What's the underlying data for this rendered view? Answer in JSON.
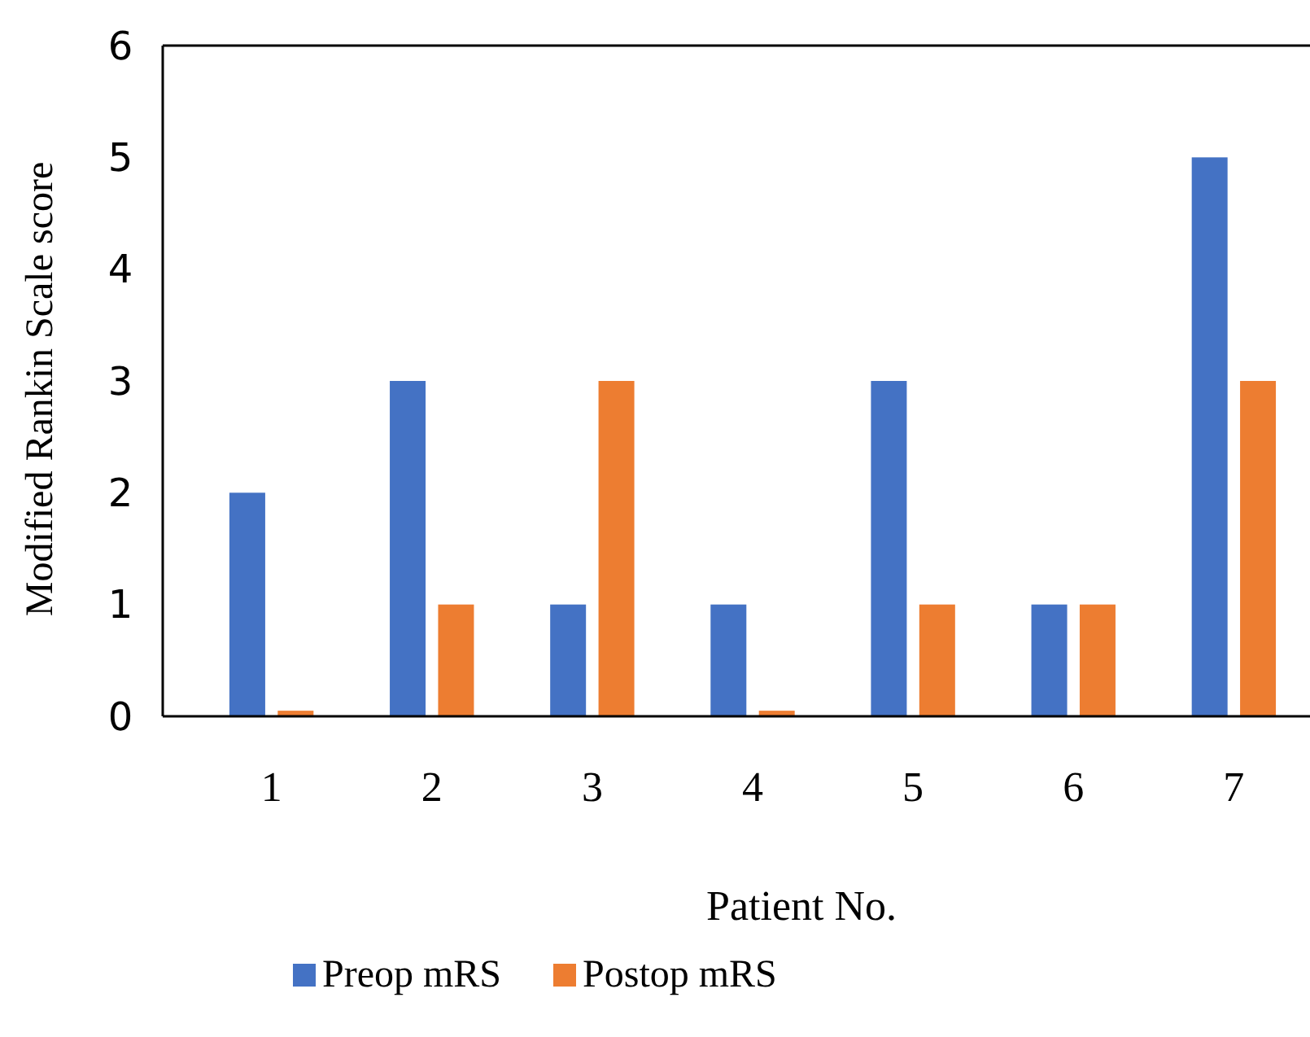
{
  "chart_data": {
    "type": "bar",
    "xlabel": "Patient No.",
    "ylabel": "Modified Rankin Scale score",
    "categories": [
      "1",
      "2",
      "3",
      "4",
      "5",
      "6",
      "7"
    ],
    "series": [
      {
        "name": "Preop mRS",
        "color": "#4472c4",
        "values": [
          2,
          3,
          1,
          1,
          3,
          1,
          5
        ]
      },
      {
        "name": "Postop mRS",
        "color": "#ed7d31",
        "values": [
          0.05,
          1,
          3,
          0.05,
          1,
          1,
          3
        ]
      }
    ],
    "ylim": [
      0,
      6
    ],
    "yticks": [
      0,
      1,
      2,
      3,
      4,
      5,
      6
    ],
    "grid": false,
    "legend": "bottom"
  }
}
